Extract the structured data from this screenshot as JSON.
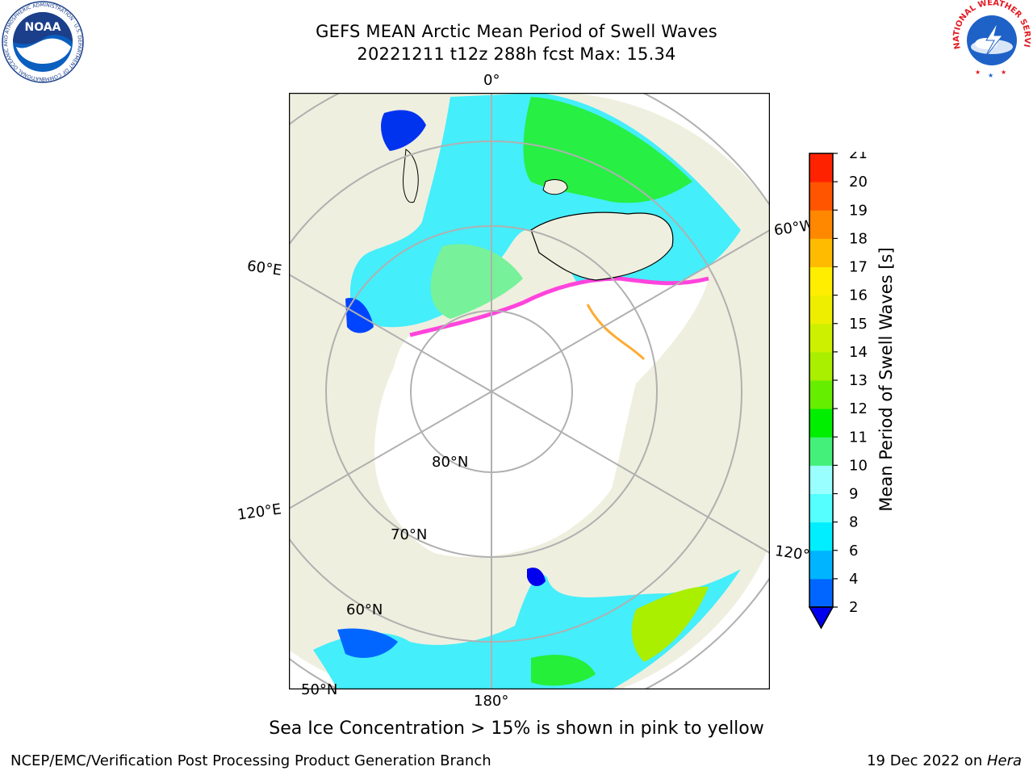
{
  "header": {
    "title_line1": "GEFS MEAN Arctic Mean Period of Swell Waves",
    "title_line2": "20221211 t12z 288h fcst   Max: 15.34"
  },
  "map": {
    "longitude_labels": [
      "0°",
      "60°W",
      "60°E",
      "120°E",
      "120°",
      "180°"
    ],
    "latitude_labels": [
      "80°N",
      "70°N",
      "60°N",
      "50°N"
    ],
    "colors": {
      "land": "#efefdf",
      "ice_open": "#ffffff",
      "coast": "#000000",
      "graticule": "#b0b0b0"
    }
  },
  "colorbar": {
    "label": "Mean Period of Swell Waves [s]",
    "ticks": [
      "2",
      "4",
      "6",
      "8",
      "9",
      "10",
      "11",
      "12",
      "13",
      "14",
      "15",
      "16",
      "17",
      "18",
      "19",
      "20",
      "21"
    ],
    "colors": [
      "#0066ff",
      "#00b4ff",
      "#00eeff",
      "#55ffff",
      "#99ffff",
      "#44f07a",
      "#00ee00",
      "#66ee00",
      "#aaee00",
      "#ccf000",
      "#eeee00",
      "#ffee00",
      "#ffbb00",
      "#ff8800",
      "#ff5500",
      "#ff2200"
    ],
    "extend_color": "#0000ee"
  },
  "note": "Sea Ice Concentration > 15% is shown in pink to yellow",
  "footer": {
    "left": "NCEP/EMC/Verification Post Processing Product Generation Branch",
    "right_prefix": "19 Dec 2022 on ",
    "right_host": "Hera"
  },
  "logos": {
    "noaa_text": "NOAA",
    "noaa_ring_text": "NATIONAL OCEANIC AND ATMOSPHERIC ADMINISTRATION · U.S. DEPARTMENT OF COMMERCE",
    "nws_ring_text": "NATIONAL WEATHER SERVICE"
  }
}
